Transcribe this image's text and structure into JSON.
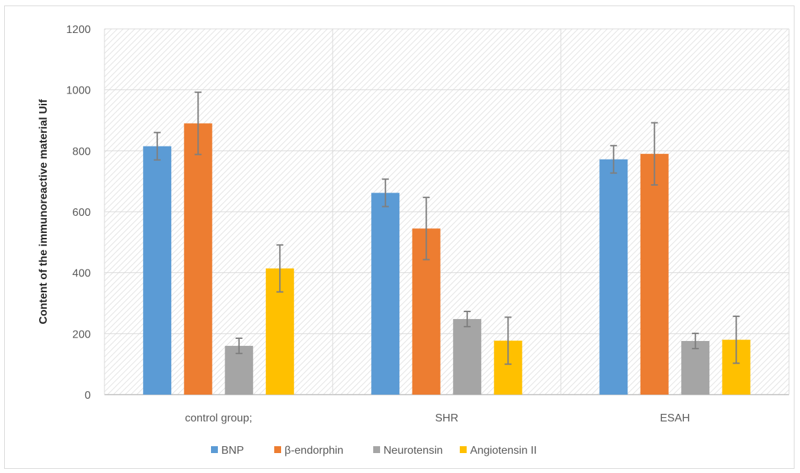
{
  "chart_data": {
    "type": "bar",
    "title": "",
    "xlabel": "",
    "ylabel": "Content of the immunoreactive material Uif",
    "ylim": [
      0,
      1200
    ],
    "yticks": [
      0,
      200,
      400,
      600,
      800,
      1000,
      1200
    ],
    "grid": true,
    "legend_position": "bottom",
    "categories": [
      "control group;",
      "SHR",
      "ESAH"
    ],
    "series": [
      {
        "name": "BNP",
        "color": "#5b9bd5",
        "values": [
          815,
          662,
          772
        ],
        "errors": [
          45,
          45,
          45
        ]
      },
      {
        "name": "β-endorphin",
        "color": "#ed7d31",
        "values": [
          890,
          545,
          790
        ],
        "errors": [
          102,
          102,
          102
        ]
      },
      {
        "name": "Neurotensin",
        "color": "#a5a5a5",
        "values": [
          160,
          248,
          176
        ],
        "errors": [
          25,
          25,
          25
        ]
      },
      {
        "name": "Angiotensin II",
        "color": "#ffc000",
        "values": [
          414,
          177,
          180
        ],
        "errors": [
          77,
          77,
          77
        ]
      }
    ]
  }
}
